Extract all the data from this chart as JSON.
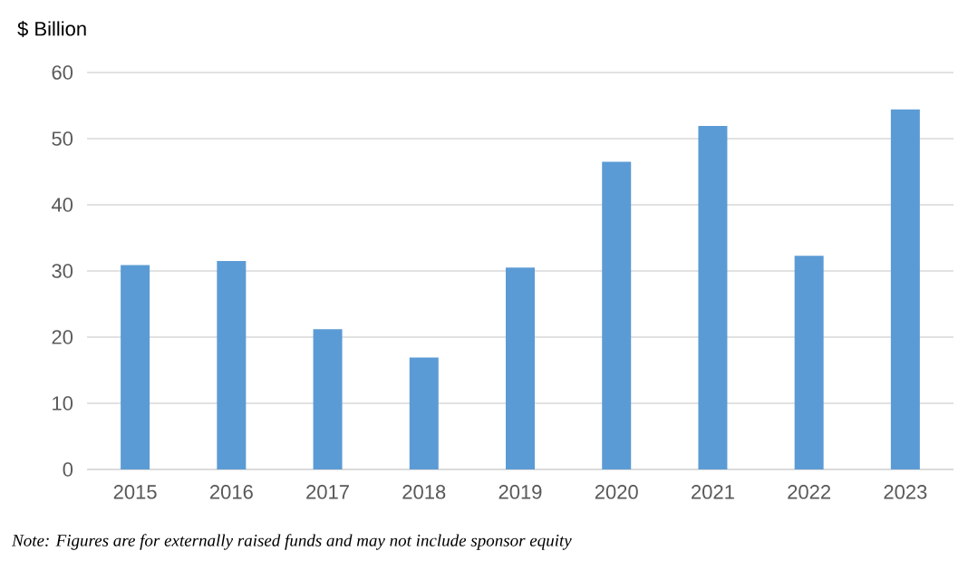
{
  "chart_data": {
    "type": "bar",
    "ylabel": "$ Billion",
    "categories": [
      "2015",
      "2016",
      "2017",
      "2018",
      "2019",
      "2020",
      "2021",
      "2022",
      "2023"
    ],
    "values": [
      30.9,
      31.5,
      21.2,
      16.9,
      30.5,
      46.5,
      51.9,
      32.3,
      54.4
    ],
    "color": "#5b9bd5",
    "ylim": [
      0,
      60
    ],
    "yticks": [
      0,
      10,
      20,
      30,
      40,
      50,
      60
    ],
    "grid": "y",
    "annotations": [
      "Note: Figures are for externally raised funds and may not include sponsor equity"
    ]
  }
}
